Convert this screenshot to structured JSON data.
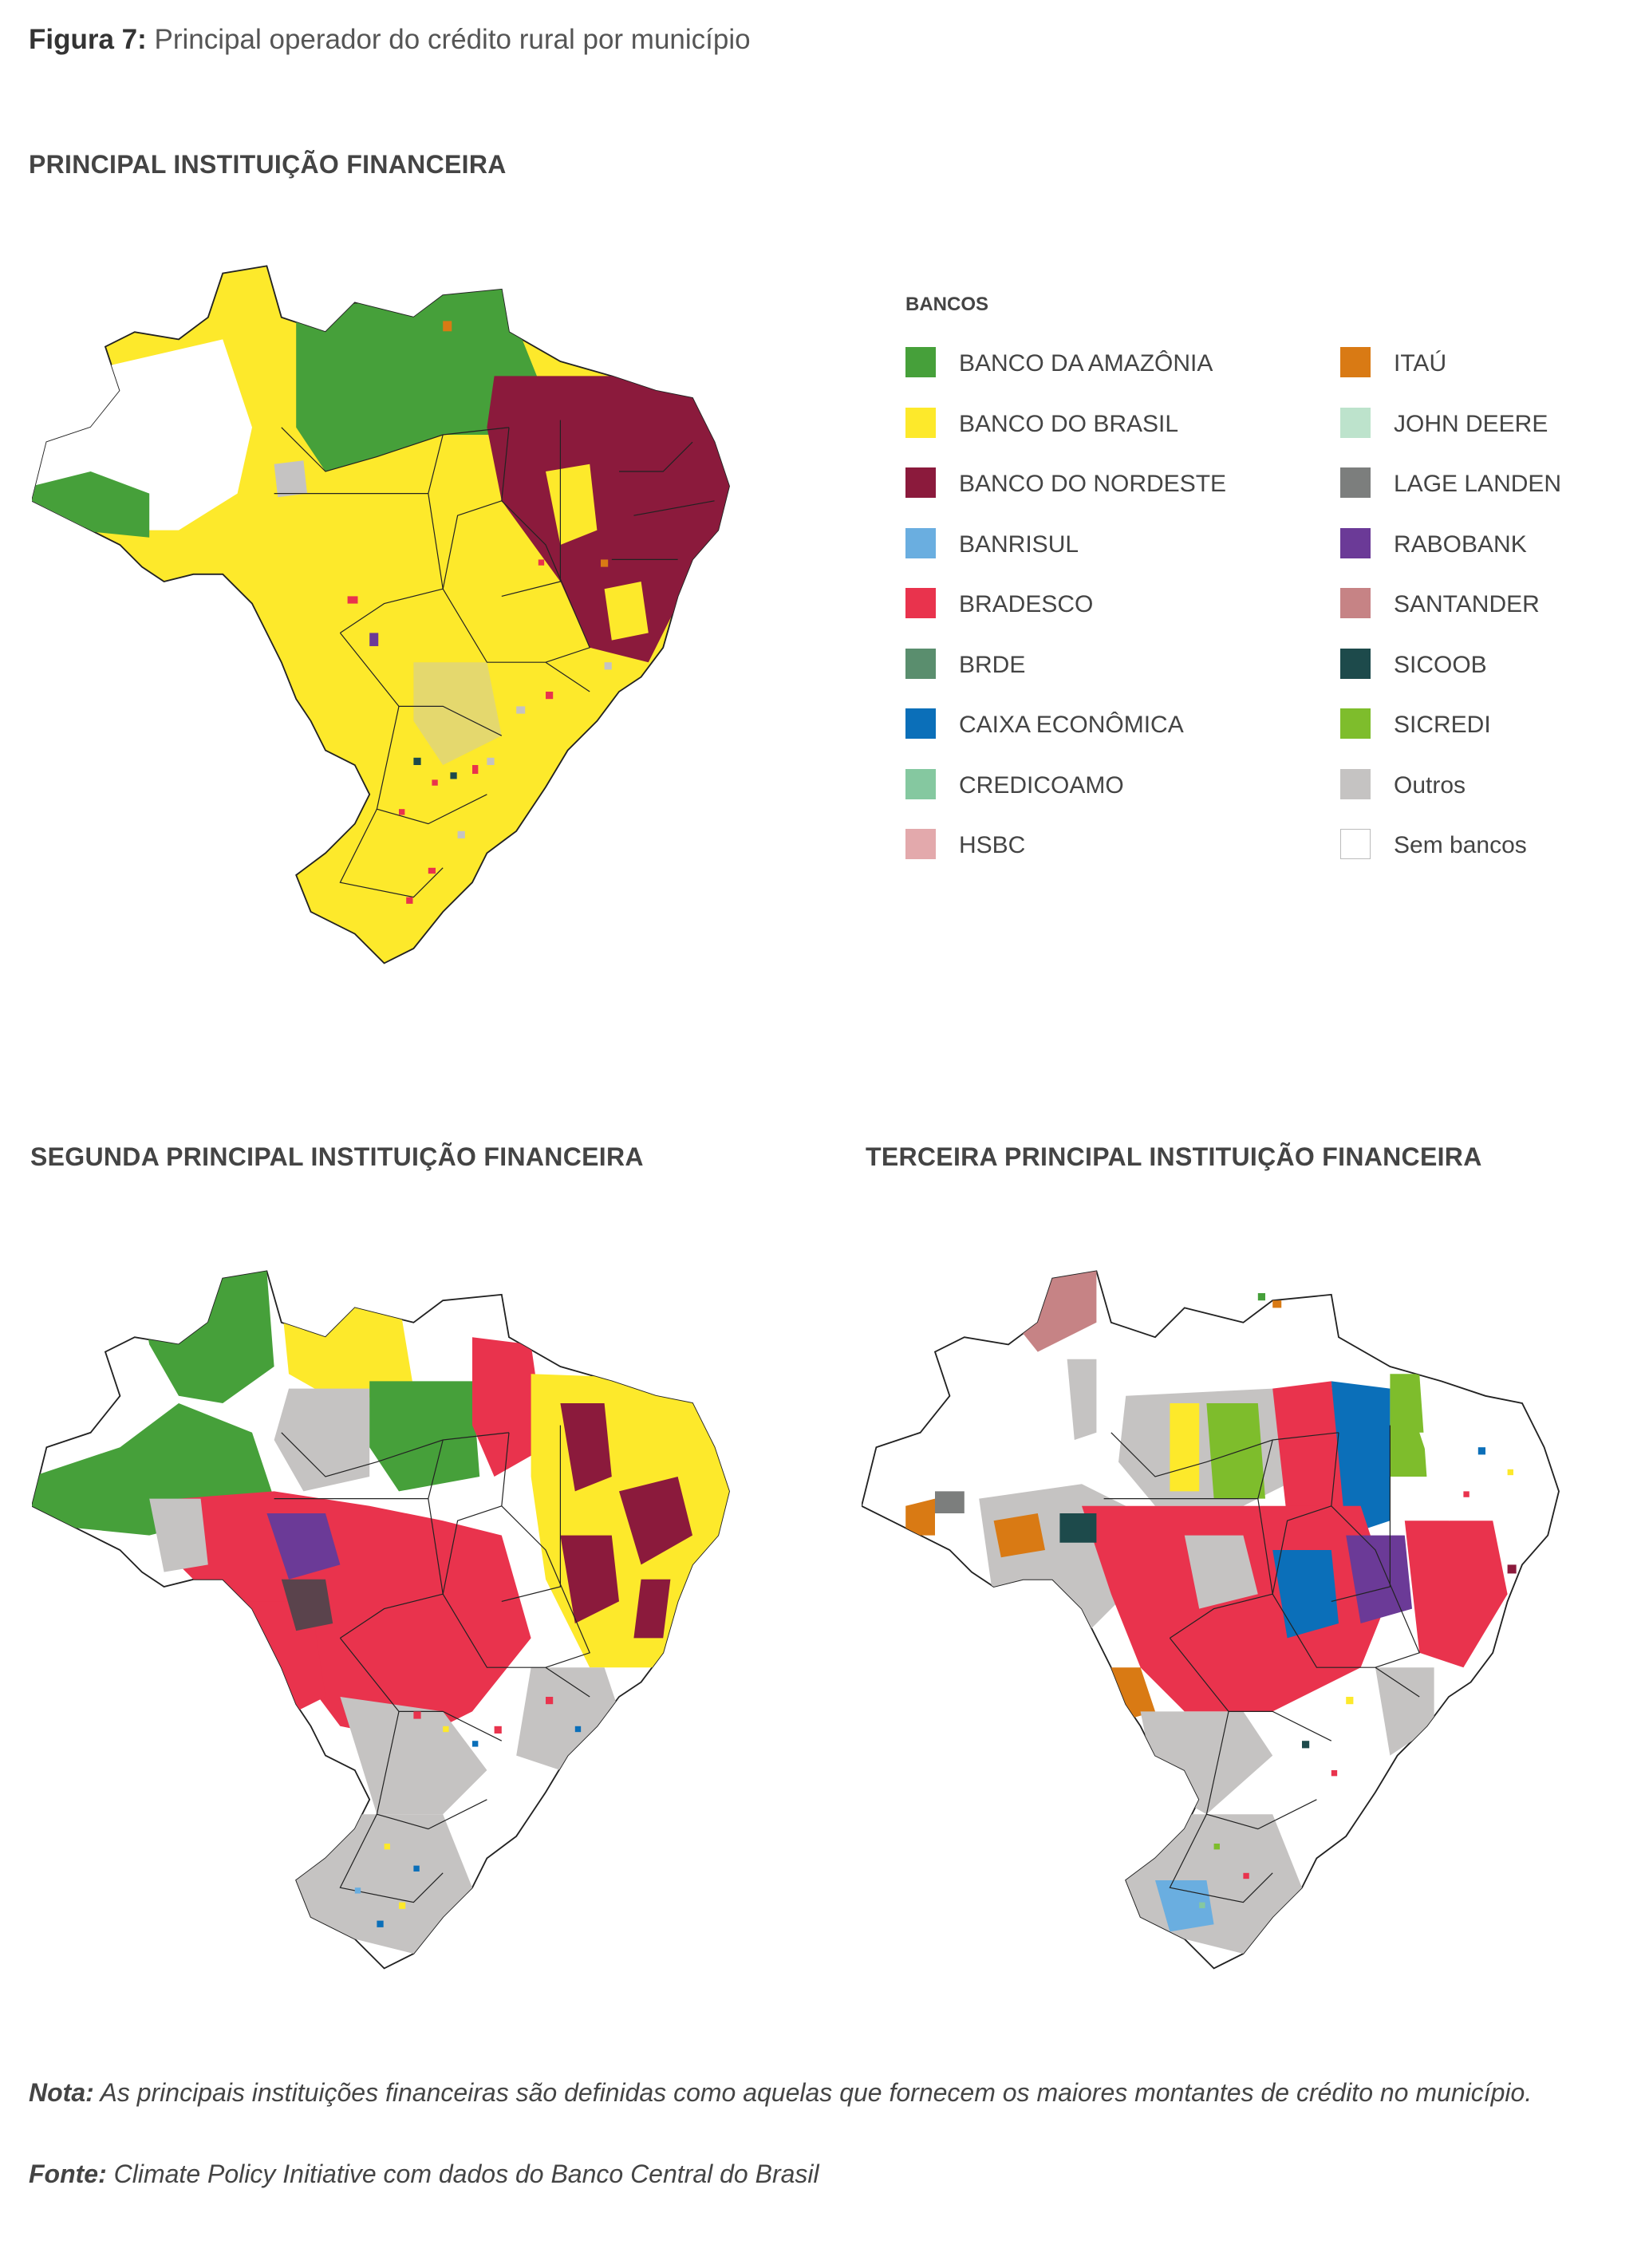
{
  "figure": {
    "label": "Figura 7:",
    "caption": "Principal operador do crédito rural por município"
  },
  "sections": {
    "first": "PRINCIPAL INSTITUIÇÃO FINANCEIRA",
    "second": "SEGUNDA PRINCIPAL INSTITUIÇÃO FINANCEIRA",
    "third": "TERCEIRA PRINCIPAL INSTITUIÇÃO FINANCEIRA"
  },
  "legend": {
    "heading": "BANCOS",
    "items": [
      {
        "label": "BANCO DA AMAZÔNIA",
        "color": "#46a03a"
      },
      {
        "label": "BANCO DO BRASIL",
        "color": "#fde92b"
      },
      {
        "label": "BANCO DO NORDESTE",
        "color": "#8b1a3c"
      },
      {
        "label": "BANRISUL",
        "color": "#6aaee0"
      },
      {
        "label": "BRADESCO",
        "color": "#e9334d"
      },
      {
        "label": "BRDE",
        "color": "#5a8e6e"
      },
      {
        "label": "CAIXA ECONÔMICA",
        "color": "#0b6fb9"
      },
      {
        "label": "CREDICOAMO",
        "color": "#85c8a0"
      },
      {
        "label": "HSBC",
        "color": "#e3a9ac"
      },
      {
        "label": "ITAÚ",
        "color": "#d97a14"
      },
      {
        "label": "JOHN DEERE",
        "color": "#bde3cc"
      },
      {
        "label": "LAGE LANDEN",
        "color": "#7c7e7d"
      },
      {
        "label": "RABOBANK",
        "color": "#6b3a97"
      },
      {
        "label": "SANTANDER",
        "color": "#c68385"
      },
      {
        "label": "SICOOB",
        "color": "#1d4a4b"
      },
      {
        "label": "SICREDI",
        "color": "#7ebd2c"
      },
      {
        "label": "Outros",
        "color": "#c5c3c2"
      },
      {
        "label": "Sem bancos",
        "color": "#ffffff"
      }
    ]
  },
  "maps": [
    {
      "name": "principal",
      "dominant": [
        "BANCO DO BRASIL",
        "BANCO DA AMAZÔNIA",
        "BANCO DO NORDESTE"
      ]
    },
    {
      "name": "segunda",
      "dominant": [
        "BANCO DO BRASIL",
        "BRADESCO",
        "BANCO DA AMAZÔNIA",
        "BANCO DO NORDESTE",
        "Outros"
      ]
    },
    {
      "name": "terceira",
      "dominant": [
        "Outros",
        "BRADESCO",
        "CAIXA ECONÔMICA",
        "SICREDI",
        "Sem bancos"
      ]
    }
  ],
  "notes": {
    "nota_label": "Nota:",
    "nota_text": "As principais instituições financeiras são definidas como aquelas que fornecem os maiores montantes de crédito no município.",
    "fonte_label": "Fonte:",
    "fonte_text": "Climate Policy Initiative com dados do Banco Central do Brasil"
  }
}
